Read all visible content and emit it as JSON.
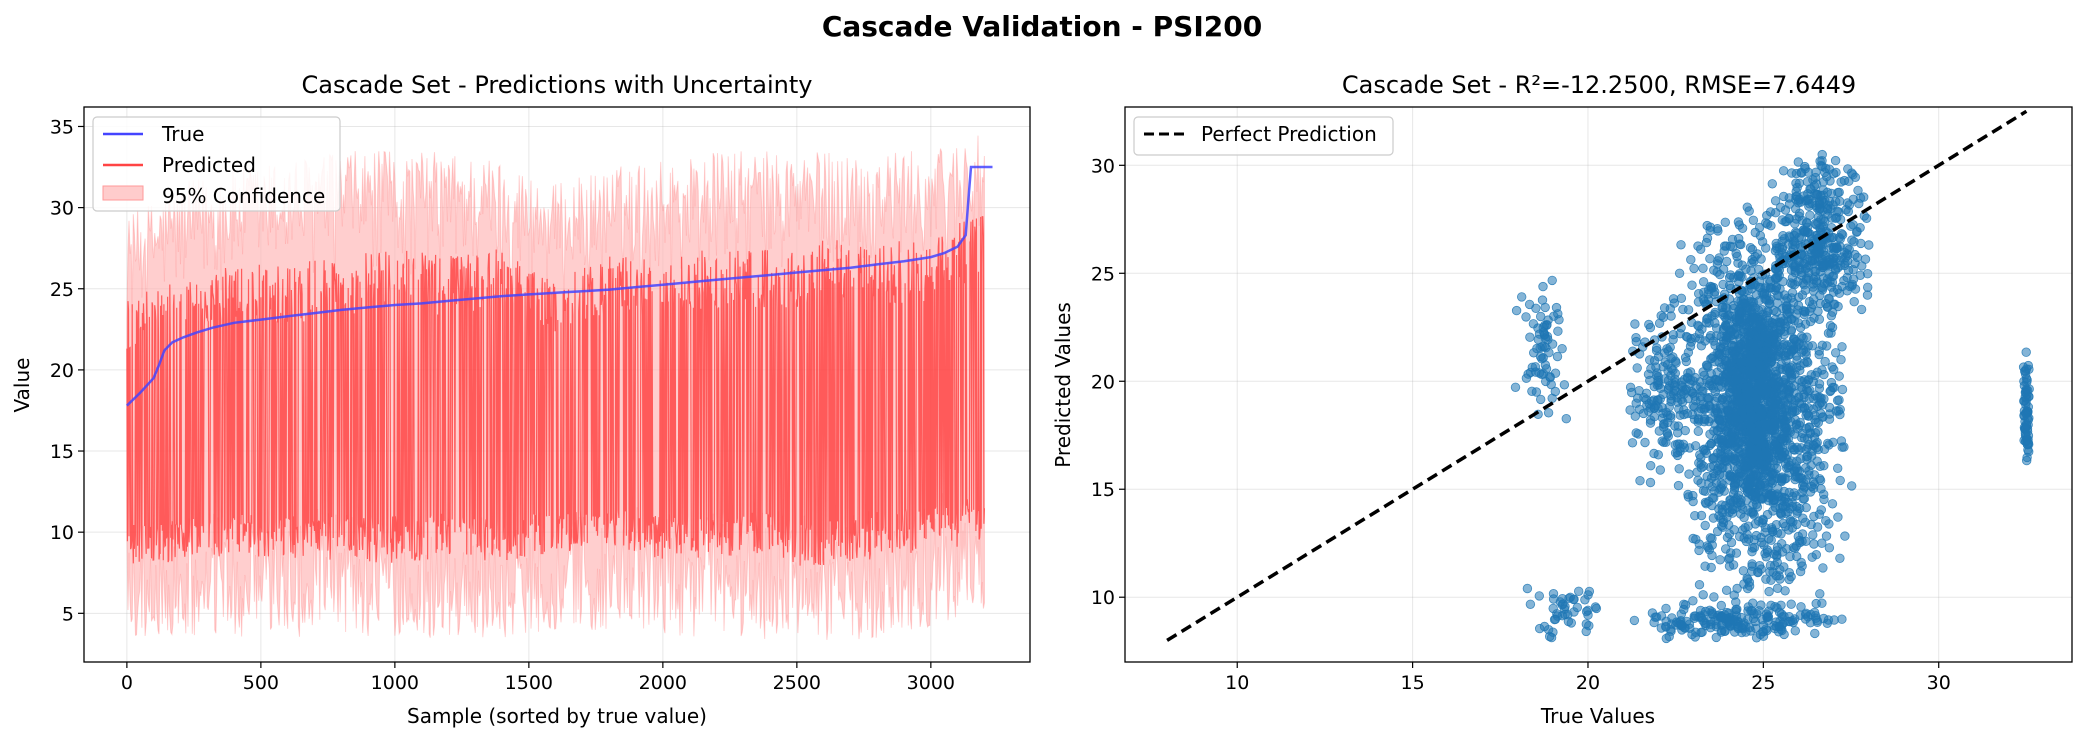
{
  "figure": {
    "title": "Cascade Validation - PSI200"
  },
  "chart_data": [
    {
      "type": "line",
      "title": "Cascade Set - Predictions with Uncertainty",
      "xlabel": "Sample (sorted by true value)",
      "ylabel": "Value",
      "xlim": [
        -160,
        3370
      ],
      "ylim": [
        2,
        36.2
      ],
      "xticks": [
        0,
        500,
        1000,
        1500,
        2000,
        2500,
        3000
      ],
      "yticks": [
        5,
        10,
        15,
        20,
        25,
        30,
        35
      ],
      "grid": true,
      "legend_position": "upper-left",
      "n_samples": 3200,
      "series": [
        {
          "name": "True",
          "color": "#4444ff",
          "x": [
            0,
            50,
            100,
            120,
            140,
            170,
            210,
            260,
            320,
            400,
            500,
            600,
            700,
            800,
            900,
            1000,
            1100,
            1200,
            1300,
            1400,
            1500,
            1550,
            1600,
            1700,
            1800,
            1900,
            2000,
            2100,
            2200,
            2300,
            2400,
            2500,
            2600,
            2700,
            2800,
            2900,
            3000,
            3050,
            3100,
            3130,
            3140,
            3150,
            3200,
            3230
          ],
          "y": [
            17.8,
            18.6,
            19.5,
            20.3,
            21.2,
            21.7,
            22.0,
            22.3,
            22.6,
            22.9,
            23.1,
            23.3,
            23.5,
            23.7,
            23.85,
            24.0,
            24.1,
            24.25,
            24.4,
            24.55,
            24.65,
            24.7,
            24.75,
            24.85,
            24.95,
            25.1,
            25.25,
            25.4,
            25.55,
            25.7,
            25.85,
            26.0,
            26.15,
            26.3,
            26.5,
            26.7,
            26.95,
            27.2,
            27.6,
            28.3,
            30.5,
            32.5,
            32.5,
            32.5
          ]
        },
        {
          "name": "Predicted",
          "color": "#ff3333",
          "summary": "Predicted values per sorted sample oscillate between roughly 8 and 28, with dense high-frequency variation and occasional spikes near 29-30.",
          "envelope_x": [
            0,
            200,
            400,
            600,
            800,
            1000,
            1200,
            1400,
            1600,
            1800,
            2000,
            2200,
            2400,
            2600,
            2800,
            3000,
            3140
          ],
          "envelope_low": [
            8.0,
            8.2,
            8.5,
            8.3,
            8.2,
            8.1,
            8.4,
            8.0,
            8.8,
            9.0,
            8.2,
            8.5,
            8.4,
            7.5,
            8.4,
            8.8,
            9.0
          ],
          "envelope_high": [
            24.5,
            25.5,
            26.5,
            26.5,
            27.0,
            27.5,
            27.0,
            27.5,
            25.5,
            27.0,
            27.0,
            27.5,
            27.5,
            28.0,
            28.0,
            28.0,
            29.5
          ]
        },
        {
          "name": "95% Confidence",
          "color": "#ffb3b3",
          "envelope_low": [
            3.5,
            3.3,
            3.4,
            3.5,
            3.6,
            3.5,
            3.4,
            3.5,
            4.0,
            3.8,
            3.6,
            3.5,
            3.4,
            3.2,
            3.5,
            4.2,
            5.0
          ],
          "envelope_high": [
            29.5,
            31.5,
            32.5,
            33.0,
            33.5,
            33.5,
            33.5,
            33.0,
            31.5,
            32.5,
            33.0,
            33.5,
            33.5,
            33.5,
            33.5,
            33.5,
            34.5
          ]
        }
      ]
    },
    {
      "type": "scatter",
      "title": "Cascade Set - R²=-12.2500, RMSE=7.6449",
      "xlabel": "True Values",
      "ylabel": "Predicted Values",
      "xlim": [
        6.8,
        33.8
      ],
      "ylim": [
        7.0,
        32.7
      ],
      "xticks": [
        10,
        15,
        20,
        25,
        30
      ],
      "yticks": [
        10,
        15,
        20,
        25,
        30
      ],
      "grid": true,
      "legend_position": "upper-left",
      "series": [
        {
          "name": "Perfect Prediction",
          "color": "#000000",
          "style": "dashed",
          "x": [
            8.0,
            32.5
          ],
          "y": [
            8.0,
            32.5
          ]
        },
        {
          "color": "#1f77b4",
          "alpha": 0.55,
          "summary": "About 3200 points; main cloud at true values 21-28 with predicted values 8-30.7, a sparse group at true 17.8-19.7 with predicted 17-25, a low band near predicted 8-10.8, and a vertical column at true 32.5 with predicted 16-21.4.",
          "clusters": [
            {
              "x_range": [
                22.2,
                27.6
              ],
              "y_range": [
                9.5,
                28.5
              ],
              "count": 1500
            },
            {
              "x_range": [
                23.5,
                26.0
              ],
              "y_range": [
                14.0,
                25.0
              ],
              "count": 700
            },
            {
              "x_range": [
                25.0,
                28.3
              ],
              "y_range": [
                22.5,
                30.7
              ],
              "count": 350
            },
            {
              "x_range": [
                21.0,
                23.5
              ],
              "y_range": [
                15.0,
                24.5
              ],
              "count": 180
            },
            {
              "x_range": [
                17.8,
                19.7
              ],
              "y_range": [
                17.8,
                25.0
              ],
              "count": 70
            },
            {
              "x_range": [
                18.0,
                20.6
              ],
              "y_range": [
                8.0,
                10.8
              ],
              "count": 45
            },
            {
              "x_range": [
                20.5,
                27.8
              ],
              "y_range": [
                8.0,
                9.8
              ],
              "count": 200
            },
            {
              "x_range": [
                32.4,
                32.6
              ],
              "y_range": [
                16.0,
                21.4
              ],
              "count": 70
            }
          ]
        }
      ]
    }
  ]
}
